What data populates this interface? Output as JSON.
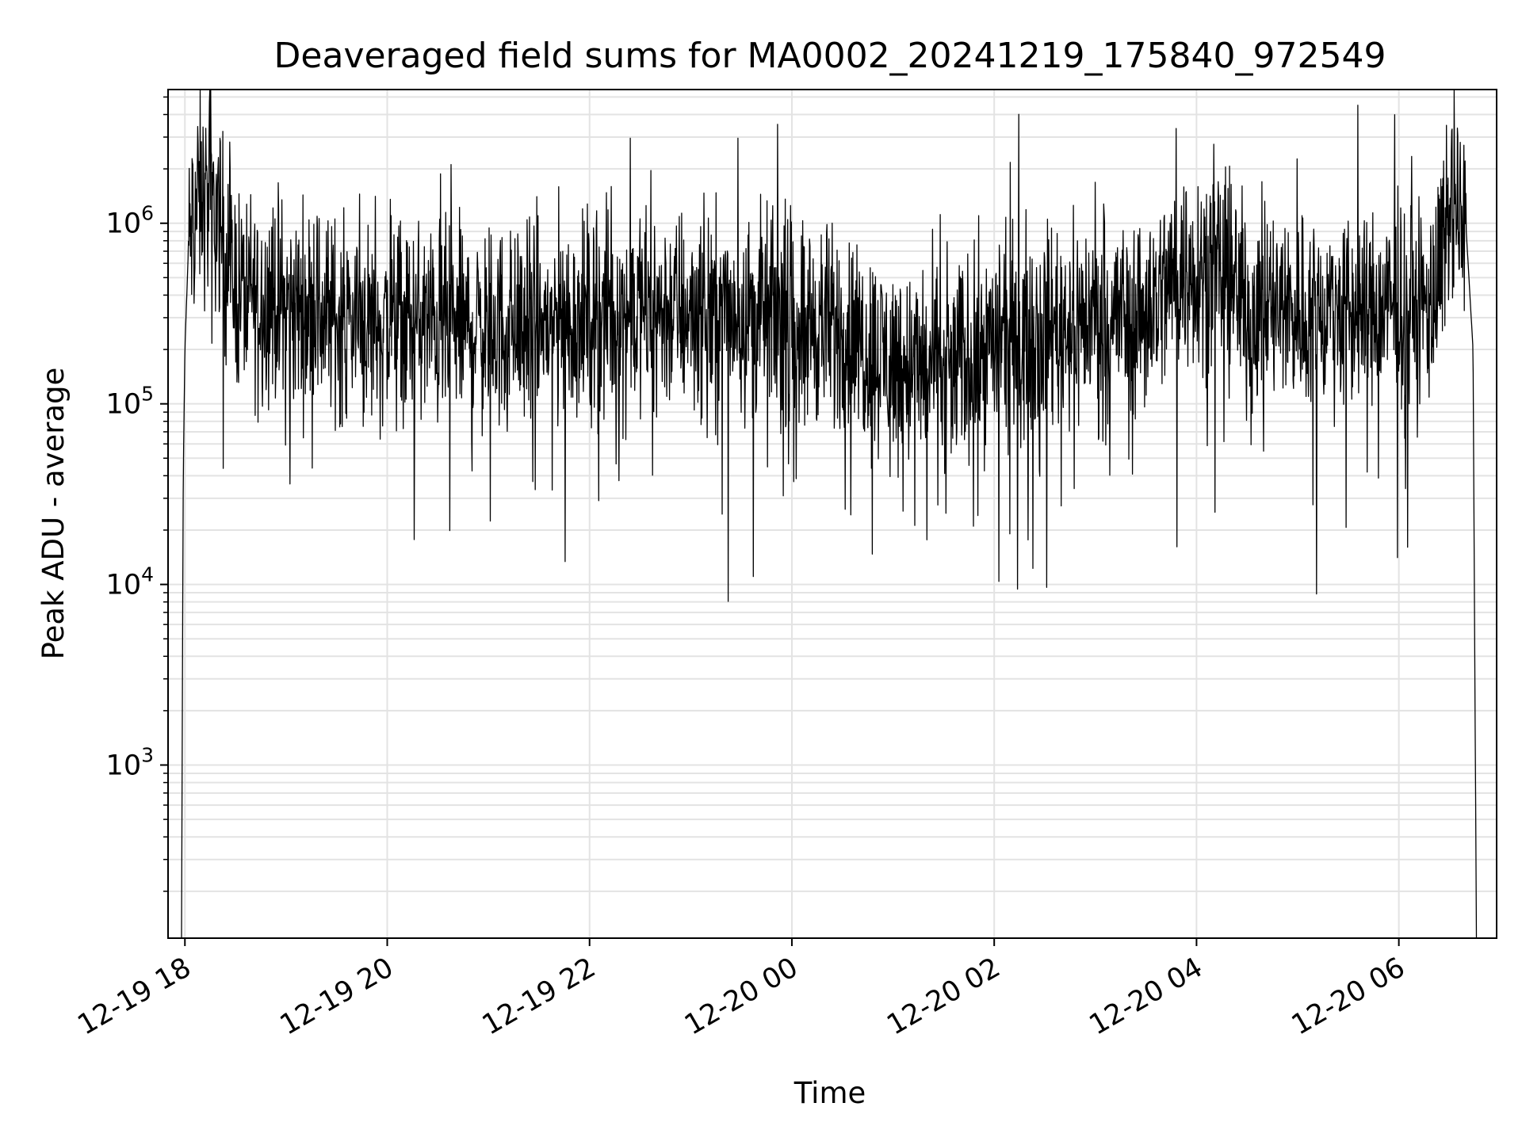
{
  "chart_data": {
    "type": "line",
    "title": "Deaveraged field sums for MA0002_20241219_175840_972549",
    "xlabel": "Time",
    "ylabel": "Peak ADU - average",
    "yscale": "log",
    "xlim": [
      "2024-12-19 17:50",
      "2024-12-20 06:58"
    ],
    "ylim": [
      110,
      5500000
    ],
    "grid": true,
    "line_color": "#000000",
    "grid_color": "#e3e3e3",
    "x_ticks": [
      "2024-12-19 18:00",
      "2024-12-19 20:00",
      "2024-12-19 22:00",
      "2024-12-20 00:00",
      "2024-12-20 02:00",
      "2024-12-20 04:00",
      "2024-12-20 06:00"
    ],
    "x_tick_labels": [
      "12-19 18",
      "12-19 20",
      "12-19 22",
      "12-20 00",
      "12-20 02",
      "12-20 04",
      "12-20 06"
    ],
    "y_ticks": [
      {
        "value": 1000,
        "base": "10",
        "exp": "3"
      },
      {
        "value": 10000,
        "base": "10",
        "exp": "4"
      },
      {
        "value": 100000,
        "base": "10",
        "exp": "5"
      },
      {
        "value": 1000000,
        "base": "10",
        "exp": "6"
      }
    ],
    "series": [
      {
        "x": [
          "2024-12-19 17:58",
          "2024-12-19 17:59",
          "2024-12-19 18:00",
          "2024-12-19 18:02",
          "2024-12-19 18:06",
          "2024-12-19 18:10",
          "2024-12-19 18:14",
          "2024-12-19 18:18",
          "2024-12-19 18:22",
          "2024-12-19 18:26",
          "2024-12-19 18:30",
          "2024-12-19 18:40",
          "2024-12-19 19:00",
          "2024-12-19 19:30",
          "2024-12-19 20:00",
          "2024-12-19 20:30",
          "2024-12-19 21:00",
          "2024-12-19 21:30",
          "2024-12-19 22:00",
          "2024-12-19 22:30",
          "2024-12-19 23:00",
          "2024-12-19 23:30",
          "2024-12-20 00:00",
          "2024-12-20 00:30",
          "2024-12-20 01:00",
          "2024-12-20 01:30",
          "2024-12-20 02:00",
          "2024-12-20 02:30",
          "2024-12-20 03:00",
          "2024-12-20 03:30",
          "2024-12-20 03:50",
          "2024-12-20 04:10",
          "2024-12-20 04:30",
          "2024-12-20 05:00",
          "2024-12-20 05:30",
          "2024-12-20 06:00",
          "2024-12-20 06:20",
          "2024-12-20 06:30",
          "2024-12-20 06:36",
          "2024-12-20 06:40",
          "2024-12-20 06:44",
          "2024-12-20 06:46"
        ],
        "values": [
          110,
          40000,
          200000,
          700000,
          1200000,
          1400000,
          1300000,
          1200000,
          900000,
          600000,
          450000,
          400000,
          350000,
          300000,
          280000,
          270000,
          260000,
          270000,
          300000,
          320000,
          330000,
          320000,
          300000,
          250000,
          170000,
          150000,
          220000,
          270000,
          300000,
          320000,
          550000,
          600000,
          350000,
          320000,
          320000,
          330000,
          360000,
          1000000,
          1050000,
          900000,
          200000,
          110
        ]
      }
    ]
  }
}
